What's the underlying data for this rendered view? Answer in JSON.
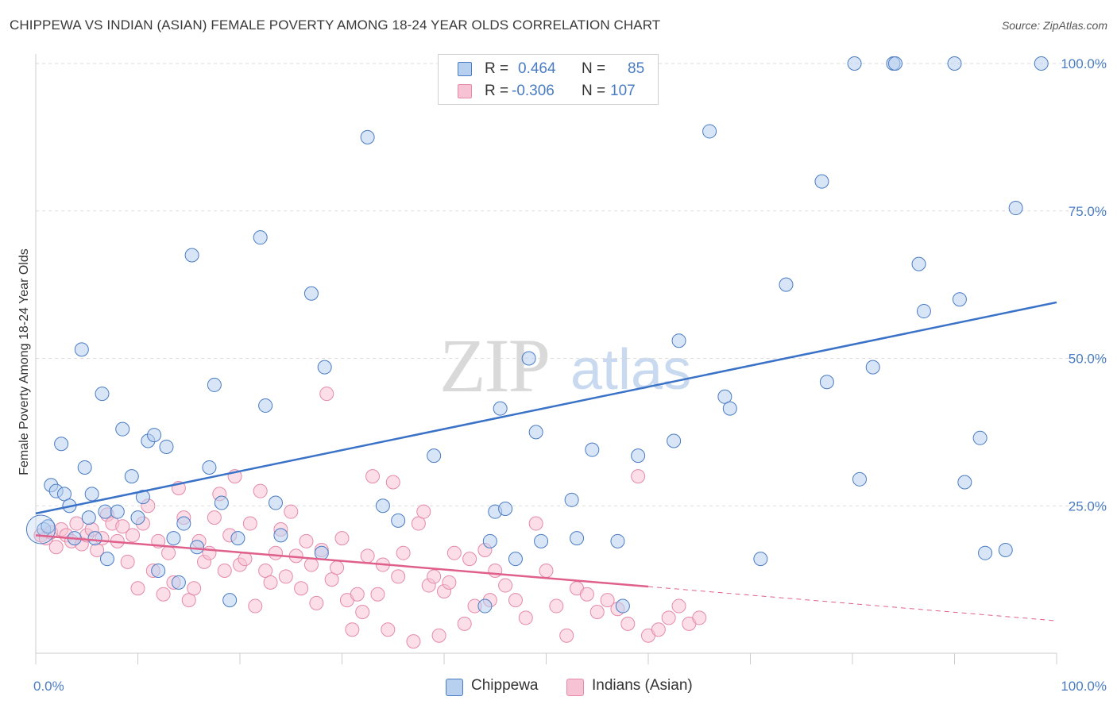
{
  "title": "CHIPPEWA VS INDIAN (ASIAN) FEMALE POVERTY AMONG 18-24 YEAR OLDS CORRELATION CHART",
  "source": "Source: ZipAtlas.com",
  "watermark": {
    "part1": "ZIP",
    "part2": "atlas"
  },
  "colors": {
    "blue": "#4a7cc2",
    "blue_fill": "#b8d0f0",
    "blue_line": "#3a72c8",
    "pink_fill": "#f7c3d4",
    "pink_line": "#e0608c",
    "pink_stroke": "#e58aaa"
  },
  "legend": {
    "rows": [
      {
        "r_label": "R =",
        "r_value": "0.464",
        "n_label": "N =",
        "n_value": "85"
      },
      {
        "r_label": "R =",
        "r_value": "-0.306",
        "n_label": "N =",
        "n_value": "107"
      }
    ]
  },
  "bottom_legend": {
    "series1": "Chippewa",
    "series2": "Indians (Asian)"
  },
  "chart_data": {
    "type": "scatter",
    "ylabel": "Female Poverty Among 18-24 Year Olds",
    "xlabel": "",
    "x_tick_labels": [
      "0.0%",
      "100.0%"
    ],
    "y_tick_labels": [
      "25.0%",
      "50.0%",
      "75.0%",
      "100.0%"
    ],
    "y_tick_values": [
      25,
      50,
      75,
      100
    ],
    "xlim": [
      0,
      100
    ],
    "ylim": [
      0,
      100
    ],
    "grid": "horizontal dashed",
    "legend_placement": "top-center",
    "series": [
      {
        "name": "Chippewa",
        "trend": {
          "x": [
            0,
            100
          ],
          "y": [
            23.7,
            59.5
          ],
          "solid_until": 100
        },
        "points": [
          [
            0.8,
            21
          ],
          [
            1.2,
            21.5
          ],
          [
            1.5,
            28.5
          ],
          [
            2,
            27.5
          ],
          [
            2.5,
            35.5
          ],
          [
            2.8,
            27
          ],
          [
            3.3,
            25
          ],
          [
            3.8,
            19.5
          ],
          [
            4.5,
            51.5
          ],
          [
            4.8,
            31.5
          ],
          [
            5.2,
            23
          ],
          [
            5.5,
            27
          ],
          [
            5.8,
            19.5
          ],
          [
            6.5,
            44
          ],
          [
            6.8,
            24
          ],
          [
            7,
            16
          ],
          [
            8,
            24
          ],
          [
            8.5,
            38
          ],
          [
            9.4,
            30
          ],
          [
            10,
            23
          ],
          [
            10.5,
            26.5
          ],
          [
            11,
            36
          ],
          [
            11.6,
            37
          ],
          [
            12,
            14
          ],
          [
            12.8,
            35
          ],
          [
            13.5,
            19.5
          ],
          [
            14,
            12
          ],
          [
            14.5,
            22
          ],
          [
            15.3,
            67.5
          ],
          [
            15.8,
            18
          ],
          [
            17,
            31.5
          ],
          [
            17.5,
            45.5
          ],
          [
            18.2,
            25.5
          ],
          [
            19,
            9
          ],
          [
            19.8,
            19.5
          ],
          [
            22,
            70.5
          ],
          [
            22.5,
            42
          ],
          [
            23.5,
            25.5
          ],
          [
            24,
            20
          ],
          [
            27,
            61
          ],
          [
            28,
            17
          ],
          [
            28.3,
            48.5
          ],
          [
            32.5,
            87.5
          ],
          [
            34,
            25
          ],
          [
            35.5,
            22.5
          ],
          [
            39,
            33.5
          ],
          [
            44,
            8
          ],
          [
            44.5,
            19
          ],
          [
            45,
            24
          ],
          [
            45.5,
            41.5
          ],
          [
            46,
            24.5
          ],
          [
            47,
            16
          ],
          [
            48.3,
            50
          ],
          [
            49,
            37.5
          ],
          [
            49.5,
            19
          ],
          [
            52.5,
            26
          ],
          [
            53,
            19.5
          ],
          [
            54.5,
            34.5
          ],
          [
            57,
            19
          ],
          [
            57.5,
            8
          ],
          [
            59,
            33.5
          ],
          [
            62.5,
            36
          ],
          [
            63,
            53
          ],
          [
            66,
            88.5
          ],
          [
            67.5,
            43.5
          ],
          [
            68,
            41.5
          ],
          [
            71,
            16
          ],
          [
            73.5,
            62.5
          ],
          [
            77,
            80
          ],
          [
            77.5,
            46
          ],
          [
            80.2,
            100
          ],
          [
            80.7,
            29.5
          ],
          [
            82,
            48.5
          ],
          [
            84,
            100
          ],
          [
            84.2,
            100
          ],
          [
            86.5,
            66
          ],
          [
            87,
            58
          ],
          [
            90,
            100
          ],
          [
            90.5,
            60
          ],
          [
            91,
            29
          ],
          [
            92.5,
            36.5
          ],
          [
            93,
            17
          ],
          [
            95,
            17.5
          ],
          [
            96,
            75.5
          ],
          [
            98.5,
            100
          ]
        ]
      },
      {
        "name": "Indians (Asian)",
        "trend": {
          "x": [
            0,
            100
          ],
          "y": [
            20.0,
            5.5
          ],
          "solid_until": 60
        },
        "points": [
          [
            0.5,
            20
          ],
          [
            1,
            19.5
          ],
          [
            1.5,
            20.5
          ],
          [
            2,
            18
          ],
          [
            2.5,
            21
          ],
          [
            3,
            20
          ],
          [
            3.5,
            19
          ],
          [
            4,
            22
          ],
          [
            4.5,
            18.5
          ],
          [
            5,
            20
          ],
          [
            5.5,
            21
          ],
          [
            6,
            17.5
          ],
          [
            6.5,
            19.5
          ],
          [
            7,
            23.5
          ],
          [
            7.5,
            22
          ],
          [
            8,
            19
          ],
          [
            8.5,
            21.5
          ],
          [
            9,
            15.5
          ],
          [
            9.5,
            20
          ],
          [
            10,
            11
          ],
          [
            10.5,
            22
          ],
          [
            11,
            25
          ],
          [
            11.5,
            14
          ],
          [
            12,
            19
          ],
          [
            12.5,
            10
          ],
          [
            13,
            17
          ],
          [
            13.5,
            12
          ],
          [
            14,
            28
          ],
          [
            14.5,
            23
          ],
          [
            15,
            9
          ],
          [
            15.5,
            11
          ],
          [
            16,
            19
          ],
          [
            16.5,
            15.5
          ],
          [
            17,
            17
          ],
          [
            17.5,
            23
          ],
          [
            18,
            27
          ],
          [
            18.5,
            14
          ],
          [
            19,
            20
          ],
          [
            19.5,
            30
          ],
          [
            20,
            15
          ],
          [
            20.5,
            16
          ],
          [
            21,
            22
          ],
          [
            21.5,
            8
          ],
          [
            22,
            27.5
          ],
          [
            22.5,
            14
          ],
          [
            23,
            12
          ],
          [
            23.5,
            17
          ],
          [
            24,
            21
          ],
          [
            24.5,
            13
          ],
          [
            25,
            24
          ],
          [
            25.5,
            16.5
          ],
          [
            26,
            11
          ],
          [
            26.5,
            19
          ],
          [
            27,
            15
          ],
          [
            27.5,
            8.5
          ],
          [
            28,
            17.5
          ],
          [
            28.5,
            44
          ],
          [
            29,
            12.5
          ],
          [
            29.5,
            14.5
          ],
          [
            30,
            19.5
          ],
          [
            30.5,
            9
          ],
          [
            31,
            4
          ],
          [
            31.5,
            10
          ],
          [
            32,
            7
          ],
          [
            32.5,
            16.5
          ],
          [
            33,
            30
          ],
          [
            33.5,
            10
          ],
          [
            34,
            15
          ],
          [
            34.5,
            4
          ],
          [
            35,
            29
          ],
          [
            35.5,
            13
          ],
          [
            36,
            17
          ],
          [
            37,
            2
          ],
          [
            37.5,
            22
          ],
          [
            38,
            24
          ],
          [
            38.5,
            11.5
          ],
          [
            39,
            13
          ],
          [
            39.5,
            3
          ],
          [
            40,
            10.5
          ],
          [
            40.5,
            12
          ],
          [
            41,
            17
          ],
          [
            42,
            5
          ],
          [
            42.5,
            16
          ],
          [
            43,
            8
          ],
          [
            44,
            17.5
          ],
          [
            44.5,
            9
          ],
          [
            45,
            14
          ],
          [
            46,
            11.5
          ],
          [
            47,
            9
          ],
          [
            48,
            6
          ],
          [
            49,
            22
          ],
          [
            50,
            14
          ],
          [
            51,
            8
          ],
          [
            52,
            3
          ],
          [
            53,
            11
          ],
          [
            54,
            10
          ],
          [
            55,
            7
          ],
          [
            56,
            9
          ],
          [
            57,
            7.5
          ],
          [
            58,
            5
          ],
          [
            59,
            30
          ],
          [
            60,
            3
          ],
          [
            61,
            4
          ],
          [
            62,
            6
          ],
          [
            63,
            8
          ],
          [
            64,
            5
          ],
          [
            65,
            6
          ]
        ]
      }
    ]
  }
}
